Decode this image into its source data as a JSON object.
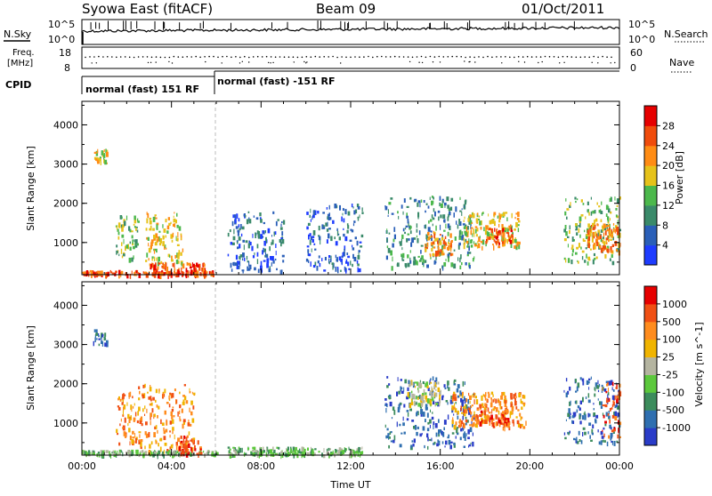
{
  "header": {
    "station": "Syowa East (fitACF)",
    "beam": "Beam 09",
    "date": "01/Oct/2011"
  },
  "panels": {
    "noise": {
      "left_label": "N.Sky",
      "right_label": "N.Search",
      "left_ticks": [
        "10^5",
        "10^0"
      ],
      "right_ticks": [
        "10^5",
        "10^0"
      ]
    },
    "freq": {
      "left_label_line1": "Freq.",
      "left_label_line2": "[MHz]",
      "right_label": "Nave",
      "left_ticks": [
        "18",
        "8"
      ],
      "right_ticks": [
        "60",
        "0"
      ]
    },
    "cpid": {
      "label": "CPID",
      "segments": [
        {
          "start_hour": 0,
          "end_hour": 6,
          "text": "normal (fast) 151 RF"
        },
        {
          "start_hour": 6,
          "end_hour": 24,
          "text": "normal (fast) -151 RF"
        }
      ]
    }
  },
  "chart_data": [
    {
      "type": "heatmap",
      "name": "power",
      "ylabel": "Slant Range [km]",
      "xlabel": "",
      "xlim_hours": [
        0,
        24
      ],
      "ylim_km": [
        180,
        4600
      ],
      "y_ticks": [
        "1000",
        "2000",
        "3000",
        "4000"
      ],
      "colorbar": {
        "label": "Power [dB]",
        "range": [
          0,
          32
        ],
        "tick_labels": [
          "4",
          "8",
          "12",
          "16",
          "20",
          "24",
          "28"
        ],
        "colors": [
          "#1e3cff",
          "#2a5fb8",
          "#3a8a6a",
          "#4cb84c",
          "#e6c21a",
          "#ff8c14",
          "#f04c0c",
          "#e60000"
        ]
      },
      "echo_regions": [
        {
          "t0": 0.0,
          "t1": 6.0,
          "r0": 200,
          "r1": 300,
          "level": 6
        },
        {
          "t0": 1.5,
          "t1": 2.5,
          "r0": 600,
          "r1": 1700,
          "level": 3
        },
        {
          "t0": 2.8,
          "t1": 4.5,
          "r0": 500,
          "r1": 1800,
          "level": 4
        },
        {
          "t0": 3.0,
          "t1": 5.5,
          "r0": 200,
          "r1": 500,
          "level": 6
        },
        {
          "t0": 0.5,
          "t1": 1.1,
          "r0": 3000,
          "r1": 3400,
          "level": 4
        },
        {
          "t0": 6.5,
          "t1": 9.0,
          "r0": 300,
          "r1": 1800,
          "level": 1
        },
        {
          "t0": 10.0,
          "t1": 12.5,
          "r0": 300,
          "r1": 2000,
          "level": 1
        },
        {
          "t0": 13.5,
          "t1": 17.5,
          "r0": 400,
          "r1": 2200,
          "level": 2
        },
        {
          "t0": 15.3,
          "t1": 16.5,
          "r0": 700,
          "r1": 1300,
          "level": 5
        },
        {
          "t0": 17.0,
          "t1": 19.5,
          "r0": 900,
          "r1": 1800,
          "level": 4
        },
        {
          "t0": 18.0,
          "t1": 19.2,
          "r0": 1000,
          "r1": 1400,
          "level": 6
        },
        {
          "t0": 21.5,
          "t1": 24.0,
          "r0": 500,
          "r1": 2200,
          "level": 3
        },
        {
          "t0": 22.5,
          "t1": 24.0,
          "r0": 800,
          "r1": 1500,
          "level": 5
        }
      ]
    },
    {
      "type": "heatmap",
      "name": "velocity",
      "ylabel": "Slant Range [km]",
      "xlabel": "Time UT",
      "xlim_hours": [
        0,
        24
      ],
      "ylim_km": [
        180,
        4600
      ],
      "x_ticks": [
        "00:00",
        "04:00",
        "08:00",
        "12:00",
        "16:00",
        "20:00",
        "00:00"
      ],
      "y_ticks": [
        "1000",
        "2000",
        "3000",
        "4000"
      ],
      "colorbar": {
        "label": "Velocity [m s^-1]",
        "tick_labels": [
          "1000",
          "500",
          "100",
          "25",
          "-25",
          "-100",
          "-500",
          "-1000"
        ],
        "colors": [
          "#2a3cc8",
          "#2f6fb0",
          "#3c8c5c",
          "#5cc83c",
          "#b4b4a0",
          "#f0b400",
          "#ff8c1e",
          "#f05014",
          "#e60000"
        ]
      },
      "echo_regions": [
        {
          "t0": 0.0,
          "t1": 6.0,
          "r0": 200,
          "r1": 320,
          "level": 3
        },
        {
          "t0": 1.5,
          "t1": 2.6,
          "r0": 500,
          "r1": 1800,
          "level": 6
        },
        {
          "t0": 2.5,
          "t1": 5.0,
          "r0": 300,
          "r1": 2000,
          "level": 6
        },
        {
          "t0": 4.2,
          "t1": 5.3,
          "r0": 200,
          "r1": 700,
          "level": 7
        },
        {
          "t0": 0.5,
          "t1": 1.1,
          "r0": 3000,
          "r1": 3400,
          "level": 1
        },
        {
          "t0": 6.5,
          "t1": 12.5,
          "r0": 200,
          "r1": 400,
          "level": 3
        },
        {
          "t0": 13.5,
          "t1": 17.5,
          "r0": 400,
          "r1": 2200,
          "level": 1
        },
        {
          "t0": 14.5,
          "t1": 16.0,
          "r0": 1500,
          "r1": 2100,
          "level": 4
        },
        {
          "t0": 16.5,
          "t1": 19.8,
          "r0": 900,
          "r1": 1800,
          "level": 6
        },
        {
          "t0": 17.5,
          "t1": 19.0,
          "r0": 1000,
          "r1": 1400,
          "level": 7
        },
        {
          "t0": 21.5,
          "t1": 24.0,
          "r0": 500,
          "r1": 2200,
          "level": 1
        },
        {
          "t0": 23.2,
          "t1": 24.0,
          "r0": 600,
          "r1": 2100,
          "level": 7
        }
      ]
    }
  ]
}
